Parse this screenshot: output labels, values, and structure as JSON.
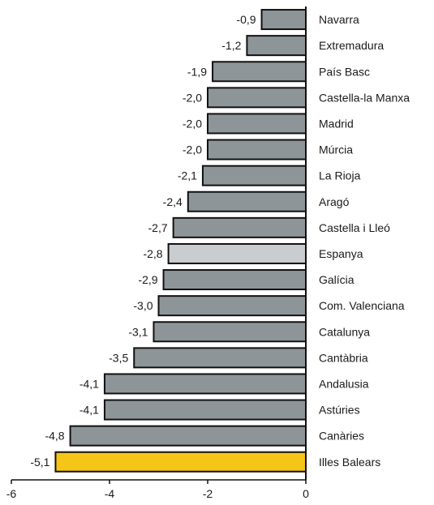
{
  "chart_data": {
    "type": "bar",
    "orientation": "horizontal",
    "categories": [
      "Navarra",
      "Extremadura",
      "País Basc",
      "Castella-la Manxa",
      "Madrid",
      "Múrcia",
      "La Rioja",
      "Aragó",
      "Castella i Lleó",
      "Espanya",
      "Galícia",
      "Com. Valenciana",
      "Catalunya",
      "Cantàbria",
      "Andalusia",
      "Astúries",
      "Canàries",
      "Illes Balears"
    ],
    "values": [
      -0.9,
      -1.2,
      -1.9,
      -2.0,
      -2.0,
      -2.0,
      -2.1,
      -2.4,
      -2.7,
      -2.8,
      -2.9,
      -3.0,
      -3.1,
      -3.5,
      -4.1,
      -4.1,
      -4.8,
      -5.1
    ],
    "value_labels": [
      "-0,9",
      "-1,2",
      "-1,9",
      "-2,0",
      "-2,0",
      "-2,0",
      "-2,1",
      "-2,4",
      "-2,7",
      "-2,8",
      "-2,9",
      "-3,0",
      "-3,1",
      "-3,5",
      "-4,1",
      "-4,1",
      "-4,8",
      "-5,1"
    ],
    "xlim": [
      -6,
      0
    ],
    "x_ticks": [
      -6,
      -4,
      -2,
      0
    ],
    "x_tick_labels": [
      "-6",
      "-4",
      "-2",
      "0"
    ],
    "title": "",
    "xlabel": "",
    "ylabel": "",
    "grid": false,
    "colors": {
      "default": "#8e9598",
      "Espanya": "#c9cdd0",
      "Illes Balears": "#f5c518",
      "edge": "#111111"
    }
  }
}
